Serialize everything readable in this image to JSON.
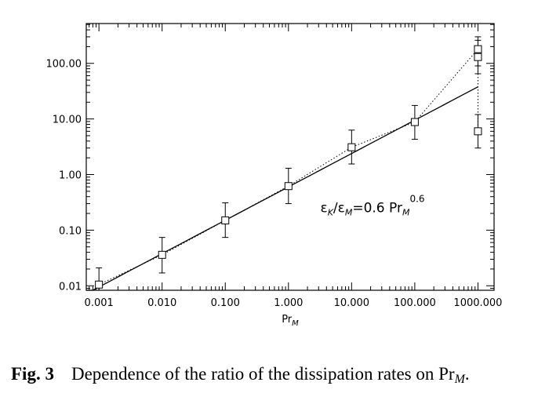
{
  "chart_data": {
    "type": "scatter",
    "xscale": "log",
    "yscale": "log",
    "xlim": [
      0.00063,
      1800
    ],
    "ylim": [
      0.0083,
      520
    ],
    "xlabel_base": "Pr",
    "xlabel_sub": "M",
    "xticks": [
      0.001,
      0.01,
      0.1,
      1,
      10,
      100,
      1000
    ],
    "xtick_labels": [
      "0.001",
      "0.010",
      "0.100",
      "1.000",
      "10.000",
      "100.000",
      "1000.000"
    ],
    "yticks": [
      0.01,
      0.1,
      1,
      10,
      100
    ],
    "ytick_labels": [
      "0.01",
      "0.10",
      "1.00",
      "10.00",
      "100.00"
    ],
    "points": [
      {
        "x": 0.001,
        "y": 0.0105,
        "err_low": 0.006,
        "err_high": 0.021
      },
      {
        "x": 0.01,
        "y": 0.036,
        "err_low": 0.017,
        "err_high": 0.074
      },
      {
        "x": 0.1,
        "y": 0.15,
        "err_low": 0.074,
        "err_high": 0.31
      },
      {
        "x": 1,
        "y": 0.62,
        "err_low": 0.3,
        "err_high": 1.3
      },
      {
        "x": 10,
        "y": 3.1,
        "err_low": 1.55,
        "err_high": 6.3
      },
      {
        "x": 100,
        "y": 8.8,
        "err_low": 4.3,
        "err_high": 17.5
      },
      {
        "x": 1000,
        "y": 180,
        "err_low": 90,
        "err_high": 300
      },
      {
        "x": 1000,
        "y": 130,
        "err_low": 65,
        "err_high": 260
      },
      {
        "x": 1000,
        "y": 6.0,
        "err_low": 3.0,
        "err_high": 12.0
      }
    ],
    "dotted_path_x": [
      0.001,
      0.01,
      0.1,
      1,
      10,
      100,
      1000,
      1000,
      1000
    ],
    "dotted_path_y": [
      0.0105,
      0.036,
      0.15,
      0.62,
      3.1,
      8.8,
      180,
      130,
      6.0
    ],
    "fit": {
      "coefficient": 0.6,
      "exponent": 0.6,
      "x_range": [
        0.00063,
        1000
      ]
    },
    "annotation": {
      "eps": "ε",
      "sub_k": "K",
      "slash": "/",
      "sub_m": "M",
      "eq": "=0.6  Pr",
      "exp": "0.6"
    }
  },
  "caption": {
    "fig_label": "Fig. 3",
    "text": "Dependence of the ratio of the dissipation rates on Pr",
    "sub": "M",
    "end": "."
  }
}
